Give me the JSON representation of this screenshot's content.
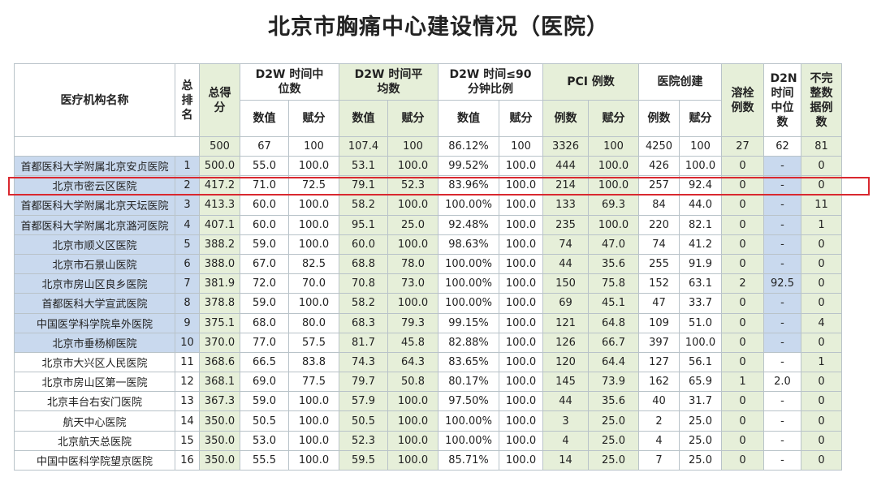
{
  "title": "北京市胸痛中心建设情况（医院）",
  "header": {
    "name": "医疗机构名称",
    "rank": "总排名",
    "score": "总得分",
    "g1": "D2W 时间中位数",
    "g2": "D2W 时间平均数",
    "g3": "D2W 时间≤90分钟比例",
    "g4": "PCI 例数",
    "g5": "医院创建",
    "lysis": "溶栓例数",
    "d2n": "D2N时间中位数",
    "incomplete": "不完整数据例数",
    "sub_value": "数值",
    "sub_score": "赋分",
    "sub_count": "例数"
  },
  "baseline": [
    "500",
    "67",
    "100",
    "107.4",
    "100",
    "86.12%",
    "100",
    "3326",
    "100",
    "4250",
    "100",
    "27",
    "62",
    "81"
  ],
  "rows": [
    [
      "首都医科大学附属北京安贞医院",
      "1",
      "500.0",
      "55.0",
      "100.0",
      "53.1",
      "100.0",
      "99.52%",
      "100.0",
      "444",
      "100.0",
      "426",
      "100.0",
      "0",
      "-",
      "0"
    ],
    [
      "北京市密云区医院",
      "2",
      "417.2",
      "71.0",
      "72.5",
      "79.1",
      "52.3",
      "83.96%",
      "100.0",
      "214",
      "100.0",
      "257",
      "92.4",
      "0",
      "-",
      "0"
    ],
    [
      "首都医科大学附属北京天坛医院",
      "3",
      "413.3",
      "60.0",
      "100.0",
      "58.2",
      "100.0",
      "100.00%",
      "100.0",
      "133",
      "69.3",
      "84",
      "44.0",
      "0",
      "-",
      "11"
    ],
    [
      "首都医科大学附属北京潞河医院",
      "4",
      "407.1",
      "60.0",
      "100.0",
      "95.1",
      "25.0",
      "92.48%",
      "100.0",
      "235",
      "100.0",
      "220",
      "82.1",
      "0",
      "-",
      "1"
    ],
    [
      "北京市顺义区医院",
      "5",
      "388.2",
      "59.0",
      "100.0",
      "60.0",
      "100.0",
      "98.63%",
      "100.0",
      "74",
      "47.0",
      "74",
      "41.2",
      "0",
      "-",
      "0"
    ],
    [
      "北京市石景山医院",
      "6",
      "388.0",
      "67.0",
      "82.5",
      "68.8",
      "78.0",
      "100.00%",
      "100.0",
      "44",
      "35.6",
      "255",
      "91.9",
      "0",
      "-",
      "0"
    ],
    [
      "北京市房山区良乡医院",
      "7",
      "381.9",
      "72.0",
      "70.0",
      "70.8",
      "73.0",
      "100.00%",
      "100.0",
      "150",
      "75.8",
      "152",
      "63.1",
      "2",
      "92.5",
      "0"
    ],
    [
      "首都医科大学宣武医院",
      "8",
      "378.8",
      "59.0",
      "100.0",
      "58.2",
      "100.0",
      "100.00%",
      "100.0",
      "69",
      "45.1",
      "47",
      "33.7",
      "0",
      "-",
      "0"
    ],
    [
      "中国医学科学院阜外医院",
      "9",
      "375.1",
      "68.0",
      "80.0",
      "68.3",
      "79.3",
      "99.15%",
      "100.0",
      "121",
      "64.8",
      "109",
      "51.0",
      "0",
      "-",
      "4"
    ],
    [
      "北京市垂杨柳医院",
      "10",
      "370.0",
      "77.0",
      "57.5",
      "81.7",
      "45.8",
      "82.88%",
      "100.0",
      "126",
      "66.7",
      "397",
      "100.0",
      "0",
      "-",
      "0"
    ],
    [
      "北京市大兴区人民医院",
      "11",
      "368.6",
      "66.5",
      "83.8",
      "74.3",
      "64.3",
      "83.65%",
      "100.0",
      "120",
      "64.4",
      "127",
      "56.1",
      "0",
      "-",
      "1"
    ],
    [
      "北京市房山区第一医院",
      "12",
      "368.1",
      "69.0",
      "77.5",
      "79.7",
      "50.8",
      "80.17%",
      "100.0",
      "145",
      "73.9",
      "162",
      "65.9",
      "1",
      "2.0",
      "0"
    ],
    [
      "北京丰台右安门医院",
      "13",
      "367.3",
      "59.0",
      "100.0",
      "57.9",
      "100.0",
      "97.50%",
      "100.0",
      "44",
      "35.6",
      "40",
      "31.7",
      "0",
      "-",
      "0"
    ],
    [
      "航天中心医院",
      "14",
      "350.0",
      "50.5",
      "100.0",
      "50.5",
      "100.0",
      "100.00%",
      "100.0",
      "3",
      "25.0",
      "2",
      "25.0",
      "0",
      "-",
      "0"
    ],
    [
      "北京航天总医院",
      "15",
      "350.0",
      "53.0",
      "100.0",
      "52.3",
      "100.0",
      "100.00%",
      "100.0",
      "4",
      "25.0",
      "4",
      "25.0",
      "0",
      "-",
      "0"
    ],
    [
      "中国中医科学院望京医院",
      "16",
      "350.0",
      "55.5",
      "100.0",
      "59.5",
      "100.0",
      "85.71%",
      "100.0",
      "14",
      "25.0",
      "7",
      "25.0",
      "0",
      "-",
      "0"
    ]
  ],
  "highlighted_row_rank": "2",
  "colors": {
    "green": "#e6efd9",
    "blue": "#c9d9ee",
    "highlight_border": "#d9282f"
  }
}
